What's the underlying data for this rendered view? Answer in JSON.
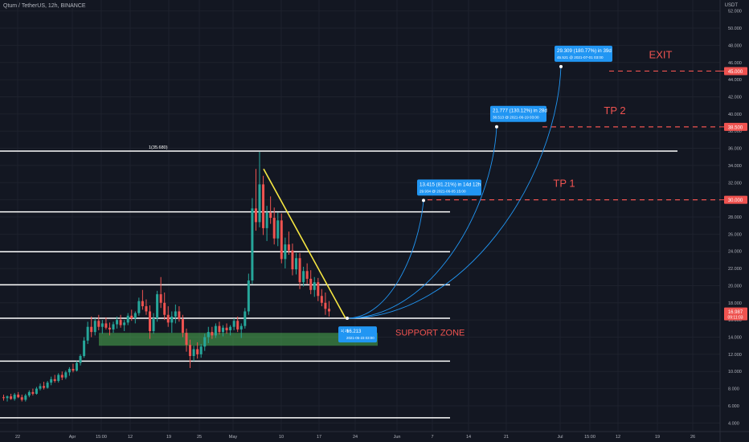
{
  "header": {
    "title": "Qtum / TetherUS, 12h, BINANCE",
    "currency": "USDT"
  },
  "colors": {
    "bg": "#131722",
    "grid": "#1e222d",
    "up": "#26a69a",
    "down": "#ef5350",
    "hline": "#ffffff",
    "trend": "#f5e642",
    "target": "#ef5350",
    "callout": "#2196f3",
    "support": "#4caf50",
    "axis_text": "#b2b5be"
  },
  "chart_data": {
    "type": "candlestick",
    "symbol": "QTUM/USDT",
    "interval": "12h",
    "y_axis": {
      "min": 3.0,
      "max": 53.0,
      "ticks": [
        4,
        6,
        8,
        10,
        12,
        14,
        16,
        18,
        20,
        22,
        24,
        26,
        28,
        30,
        32,
        34,
        36,
        38,
        40,
        42,
        44,
        46,
        48,
        50,
        52
      ]
    },
    "x_axis": {
      "labels": [
        "22",
        "Apr",
        "15:00",
        "12",
        "19",
        "25",
        "May",
        "10",
        "17",
        "24",
        "Jun",
        "7",
        "14",
        "21",
        "Jul",
        "15:00",
        "12",
        "19",
        "26"
      ]
    },
    "price_badges": [
      {
        "label": "45.000",
        "value": 45.0,
        "type": "target"
      },
      {
        "label": "38.500",
        "value": 38.5,
        "type": "target"
      },
      {
        "label": "30.000",
        "value": 30.0,
        "type": "target"
      },
      {
        "label": "16.987",
        "value": 16.987,
        "type": "last",
        "countdown": "09:11:03"
      }
    ],
    "horizontal_lines": [
      35.68,
      28.6,
      23.95,
      20.1,
      16.2,
      11.2,
      4.6
    ],
    "top_label": "1(35.680)",
    "support_zone": {
      "low": 13.0,
      "high": 14.5,
      "label": "SUPPORT ZONE"
    },
    "targets": [
      {
        "name": "EXIT",
        "price": 45.0
      },
      {
        "name": "TP 2",
        "price": 38.5
      },
      {
        "name": "TP 1",
        "price": 30.0
      }
    ],
    "trendline": {
      "start_price": 33.6,
      "end_price": 16.2
    },
    "entry_callout": {
      "line1": "16.213",
      "line2": "2021-05-23 03:00",
      "clipped": "1( 26"
    },
    "projections": [
      {
        "line1": "13.415 (81.21%) in 14d 12h",
        "line2": "29.934 @ 2021-06-05  15:00",
        "end_price": 29.934
      },
      {
        "line1": "21.777 (130.12%) in 28d",
        "line2": "38.513 @ 2021-06-19  03:00",
        "end_price": 38.513
      },
      {
        "line1": "29.309 (180.77%) in 39d",
        "line2": "45.521 @ 2021-07-01  03:00",
        "end_price": 45.521
      }
    ],
    "candles": [
      [
        7.0,
        7.3,
        6.6,
        6.9
      ],
      [
        6.9,
        7.2,
        6.5,
        7.1
      ],
      [
        7.1,
        7.4,
        6.7,
        6.8
      ],
      [
        6.8,
        7.5,
        6.6,
        7.3
      ],
      [
        7.3,
        7.6,
        6.9,
        7.0
      ],
      [
        7.0,
        7.3,
        6.5,
        6.7
      ],
      [
        6.7,
        7.4,
        6.5,
        7.2
      ],
      [
        7.2,
        7.8,
        7.0,
        7.6
      ],
      [
        7.6,
        8.0,
        7.2,
        7.4
      ],
      [
        7.4,
        8.2,
        7.3,
        8.0
      ],
      [
        8.0,
        8.6,
        7.8,
        8.3
      ],
      [
        8.3,
        8.8,
        7.9,
        8.1
      ],
      [
        8.1,
        8.9,
        8.0,
        8.7
      ],
      [
        8.7,
        9.4,
        8.4,
        9.1
      ],
      [
        9.1,
        9.6,
        8.7,
        8.9
      ],
      [
        8.9,
        9.8,
        8.7,
        9.6
      ],
      [
        9.6,
        10.0,
        9.0,
        9.3
      ],
      [
        9.3,
        10.1,
        9.1,
        9.9
      ],
      [
        9.9,
        10.5,
        9.5,
        10.3
      ],
      [
        10.3,
        10.9,
        9.9,
        10.1
      ],
      [
        10.1,
        11.2,
        10.0,
        11.0
      ],
      [
        11.0,
        12.0,
        10.7,
        11.8
      ],
      [
        11.8,
        14.0,
        11.6,
        13.6
      ],
      [
        13.6,
        15.8,
        13.2,
        15.2
      ],
      [
        15.2,
        16.4,
        14.0,
        14.6
      ],
      [
        14.6,
        16.2,
        14.2,
        15.9
      ],
      [
        15.9,
        16.6,
        14.8,
        15.2
      ],
      [
        15.2,
        16.0,
        14.4,
        15.6
      ],
      [
        15.6,
        16.3,
        14.9,
        15.1
      ],
      [
        15.1,
        15.7,
        14.2,
        14.9
      ],
      [
        14.9,
        15.8,
        14.5,
        15.5
      ],
      [
        15.5,
        16.4,
        15.0,
        16.0
      ],
      [
        16.0,
        16.6,
        15.1,
        15.4
      ],
      [
        15.4,
        16.0,
        14.7,
        15.7
      ],
      [
        15.7,
        16.8,
        15.4,
        16.5
      ],
      [
        16.5,
        17.2,
        15.9,
        16.2
      ],
      [
        16.2,
        17.0,
        15.6,
        16.8
      ],
      [
        16.8,
        18.6,
        16.5,
        18.2
      ],
      [
        18.2,
        19.5,
        17.2,
        17.6
      ],
      [
        17.6,
        18.4,
        16.6,
        17.0
      ],
      [
        17.0,
        17.7,
        13.8,
        14.7
      ],
      [
        14.7,
        16.8,
        14.4,
        16.2
      ],
      [
        16.2,
        19.4,
        15.8,
        19.0
      ],
      [
        19.0,
        21.0,
        17.4,
        18.0
      ],
      [
        18.0,
        19.2,
        16.0,
        16.6
      ],
      [
        16.6,
        17.6,
        15.2,
        15.7
      ],
      [
        15.7,
        17.0,
        14.5,
        16.4
      ],
      [
        16.4,
        17.8,
        15.6,
        17.0
      ],
      [
        17.0,
        17.6,
        15.8,
        16.1
      ],
      [
        16.1,
        16.6,
        14.0,
        14.5
      ],
      [
        14.5,
        15.0,
        12.3,
        13.1
      ],
      [
        13.1,
        13.7,
        10.4,
        11.8
      ],
      [
        11.8,
        13.0,
        11.2,
        12.6
      ],
      [
        12.6,
        13.4,
        11.5,
        12.0
      ],
      [
        12.0,
        13.2,
        11.6,
        12.9
      ],
      [
        12.9,
        14.4,
        12.4,
        14.0
      ],
      [
        14.0,
        15.2,
        13.3,
        14.6
      ],
      [
        14.6,
        15.2,
        13.8,
        14.2
      ],
      [
        14.2,
        15.6,
        13.9,
        15.3
      ],
      [
        15.3,
        15.8,
        14.3,
        14.6
      ],
      [
        14.6,
        15.4,
        14.1,
        15.1
      ],
      [
        15.1,
        15.6,
        14.4,
        14.8
      ],
      [
        14.8,
        15.4,
        14.2,
        15.2
      ],
      [
        15.2,
        16.2,
        14.8,
        15.9
      ],
      [
        15.9,
        16.4,
        14.6,
        14.9
      ],
      [
        14.9,
        15.6,
        13.9,
        15.3
      ],
      [
        15.3,
        17.4,
        15.0,
        17.0
      ],
      [
        17.0,
        21.4,
        16.6,
        20.6
      ],
      [
        20.6,
        30.2,
        20.2,
        29.0
      ],
      [
        29.0,
        33.6,
        26.4,
        27.4
      ],
      [
        27.4,
        35.6,
        26.8,
        31.8
      ],
      [
        31.8,
        32.8,
        25.9,
        26.7
      ],
      [
        26.7,
        29.3,
        25.2,
        28.5
      ],
      [
        28.5,
        30.4,
        27.2,
        27.9
      ],
      [
        27.9,
        29.1,
        24.8,
        25.5
      ],
      [
        25.5,
        28.5,
        24.6,
        27.6
      ],
      [
        27.6,
        28.4,
        22.6,
        23.1
      ],
      [
        23.1,
        25.6,
        22.0,
        24.8
      ],
      [
        24.8,
        26.3,
        23.6,
        24.1
      ],
      [
        24.1,
        24.9,
        21.2,
        21.9
      ],
      [
        21.9,
        23.8,
        21.3,
        23.2
      ],
      [
        23.2,
        23.8,
        19.6,
        20.4
      ],
      [
        20.4,
        22.2,
        19.9,
        21.7
      ],
      [
        21.7,
        22.6,
        20.2,
        20.8
      ],
      [
        20.8,
        21.8,
        19.0,
        19.5
      ],
      [
        19.5,
        21.0,
        18.7,
        20.4
      ],
      [
        20.4,
        20.9,
        18.2,
        18.8
      ],
      [
        18.8,
        19.6,
        17.6,
        18.0
      ],
      [
        18.0,
        19.2,
        16.6,
        17.3
      ],
      [
        17.3,
        18.2,
        16.4,
        17.0
      ]
    ]
  }
}
